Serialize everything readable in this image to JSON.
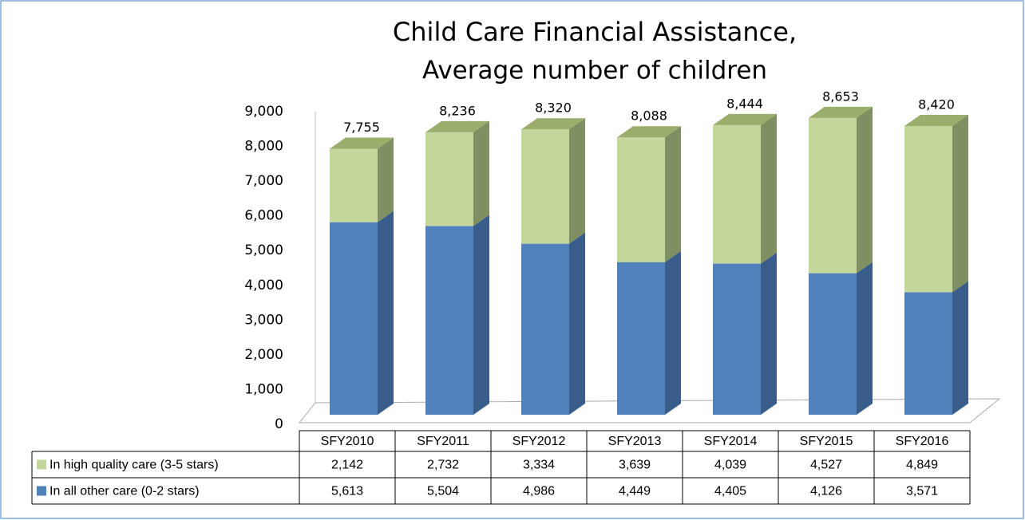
{
  "chart_data": {
    "type": "bar3d_stacked",
    "title": "Child Care Financial Assistance,",
    "subtitle": "Average number of children",
    "categories": [
      "SFY2010",
      "SFY2011",
      "SFY2012",
      "SFY2013",
      "SFY2014",
      "SFY2015",
      "SFY2016"
    ],
    "series": [
      {
        "name": "In all other care (0-2 stars)",
        "color": "#4f81bd",
        "side_color": "#385d8a",
        "top_color": "#5d8cc4",
        "values": [
          5613,
          5504,
          4986,
          4449,
          4405,
          4126,
          3571
        ],
        "value_labels": [
          "5,613",
          "5,504",
          "4,986",
          "4,449",
          "4,405",
          "4,126",
          "3,571"
        ]
      },
      {
        "name": "In high quality care (3-5 stars)",
        "color": "#c3d69b",
        "side_color": "#7f8f62",
        "top_color": "#9aae6c",
        "values": [
          2142,
          2732,
          3334,
          3639,
          4039,
          4527,
          4849
        ],
        "value_labels": [
          "2,142",
          "2,732",
          "3,334",
          "3,639",
          "4,039",
          "4,527",
          "4,849"
        ]
      }
    ],
    "totals": {
      "values": [
        7755,
        8236,
        8320,
        8088,
        8444,
        8653,
        8420
      ],
      "value_labels": [
        "7,755",
        "8,236",
        "8,320",
        "8,088",
        "8,444",
        "8,653",
        "8,420"
      ]
    },
    "ylim": [
      0,
      9000
    ],
    "yticks": [
      0,
      {
        "value": 1000,
        "label": "1,000"
      },
      {
        "value": 2000,
        "label": "2,000"
      },
      {
        "value": 3000,
        "label": "3,000"
      },
      {
        "value": 4000,
        "label": "4,000"
      },
      {
        "value": 5000,
        "label": "5,000"
      },
      {
        "value": 6000,
        "label": "6,000"
      },
      {
        "value": 7000,
        "label": "7,000"
      },
      {
        "value": 8000,
        "label": "8,000"
      },
      {
        "value": 9000,
        "label": "9,000"
      }
    ],
    "grid": false
  }
}
